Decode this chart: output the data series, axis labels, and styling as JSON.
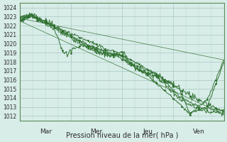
{
  "title": "",
  "xlabel": "Pression niveau de la mer( hPa )",
  "ylabel": "",
  "bg_color": "#d8ede8",
  "plot_bg_color": "#d8ede8",
  "grid_color": "#b0ccc8",
  "line_color": "#2d6e2d",
  "ylim": [
    1011.5,
    1024.5
  ],
  "yticks": [
    1012,
    1013,
    1014,
    1015,
    1016,
    1017,
    1018,
    1019,
    1020,
    1021,
    1022,
    1023,
    1024
  ],
  "xtick_major_positions": [
    0,
    24,
    48,
    72,
    96
  ],
  "xtick_label_positions": [
    12,
    36,
    60,
    84
  ],
  "xtick_labels": [
    "Mar",
    "Mer",
    "Jeu",
    "Ven"
  ],
  "n_points": 300,
  "total_hours": 96
}
